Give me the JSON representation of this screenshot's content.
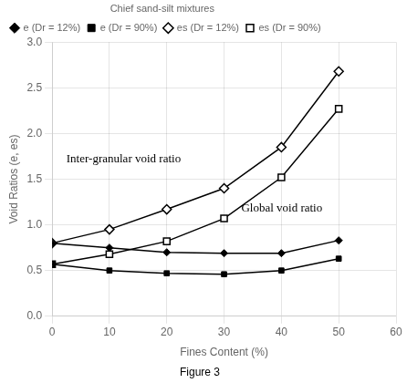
{
  "chart_data": {
    "type": "line",
    "subtitle": "Figure 3",
    "xlabel": "Fines Content (%)",
    "ylabel": "Void Ratios (e, es)",
    "legend_title": "Chief sand-silt mixtures",
    "x": [
      0,
      10,
      20,
      30,
      40,
      50
    ],
    "series": [
      {
        "name": "e (Dr = 12%)",
        "color": "black",
        "marker": "diamond",
        "line_style": "solid",
        "values": [
          0.8,
          0.75,
          0.7,
          0.69,
          0.69,
          0.83
        ]
      },
      {
        "name": "e (Dr = 90%)",
        "color": "black",
        "marker": "square",
        "line_style": "solid",
        "values": [
          0.57,
          0.5,
          0.47,
          0.46,
          0.5,
          0.63
        ]
      },
      {
        "name": "es (Dr = 12%)",
        "color": "black",
        "marker": "open-diamond",
        "line_style": "solid",
        "values": [
          0.8,
          0.95,
          1.17,
          1.4,
          1.85,
          2.68
        ]
      },
      {
        "name": "es (Dr = 90%)",
        "color": "black",
        "marker": "open-square",
        "line_style": "solid",
        "values": [
          0.57,
          0.68,
          0.82,
          1.07,
          1.52,
          2.27
        ]
      }
    ],
    "annotations": [
      {
        "text": "Inter-granular void ratio",
        "x": 2.5,
        "y": 1.68
      },
      {
        "text": "Global void ratio",
        "x": 33,
        "y": 1.15
      }
    ],
    "xlim": [
      0,
      60
    ],
    "ylim": [
      0.0,
      3.0
    ],
    "xticks": [
      0,
      10,
      20,
      30,
      40,
      50,
      60
    ],
    "yticks": [
      {
        "value": 0.0,
        "label": "0.0"
      },
      {
        "value": 0.5,
        "label": "0.5"
      },
      {
        "value": 1.0,
        "label": "1.0"
      },
      {
        "value": 1.5,
        "label": "1.5"
      },
      {
        "value": 2.0,
        "label": "2.0"
      },
      {
        "value": 2.5,
        "label": "2.5"
      },
      {
        "value": 3.0,
        "label": "3.0"
      }
    ],
    "grid": true,
    "legend": "upper left"
  }
}
